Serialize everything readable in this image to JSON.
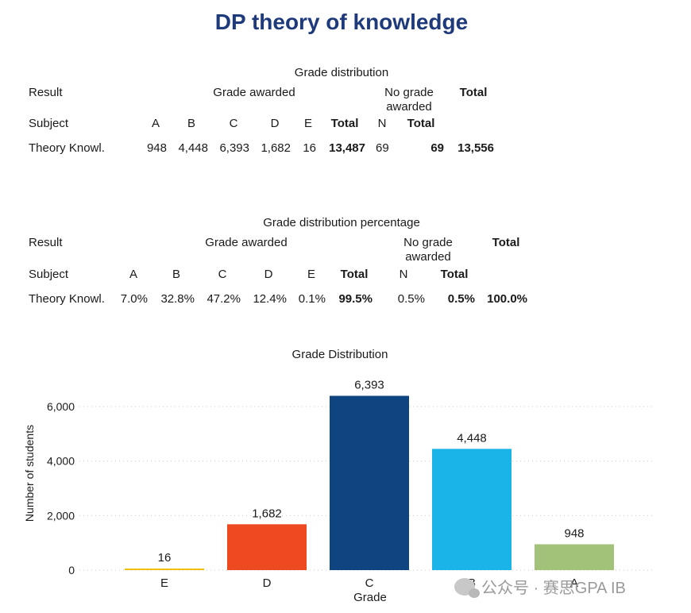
{
  "title": "DP theory of knowledge",
  "table1": {
    "caption": "Grade distribution",
    "result_label": "Result",
    "grade_awarded_label": "Grade awarded",
    "no_grade_label_1": "No grade",
    "no_grade_label_2": "awarded",
    "total_label": "Total",
    "subject_label": "Subject",
    "col_a": "A",
    "col_b": "B",
    "col_c": "C",
    "col_d": "D",
    "col_e": "E",
    "col_total": "Total",
    "col_n": "N",
    "col_total2": "Total",
    "row": {
      "subject": "Theory Knowl.",
      "a": "948",
      "b": "4,448",
      "c": "6,393",
      "d": "1,682",
      "e": "16",
      "total": "13,487",
      "n": "69",
      "total2": "69",
      "grand_total": "13,556"
    }
  },
  "table2": {
    "caption": "Grade distribution percentage",
    "result_label": "Result",
    "grade_awarded_label": "Grade awarded",
    "no_grade_label_1": "No grade",
    "no_grade_label_2": "awarded",
    "total_label": "Total",
    "subject_label": "Subject",
    "col_a": "A",
    "col_b": "B",
    "col_c": "C",
    "col_d": "D",
    "col_e": "E",
    "col_total": "Total",
    "col_n": "N",
    "col_total2": "Total",
    "row": {
      "subject": "Theory Knowl.",
      "a": "7.0%",
      "b": "32.8%",
      "c": "47.2%",
      "d": "12.4%",
      "e": "0.1%",
      "total": "99.5%",
      "n": "0.5%",
      "total2": "0.5%",
      "grand_total": "100.0%"
    }
  },
  "chart_data": {
    "type": "bar",
    "title": "Grade Distribution",
    "xlabel": "Grade",
    "ylabel": "Number of students",
    "categories": [
      "E",
      "D",
      "C",
      "B",
      "A"
    ],
    "values": [
      16,
      1682,
      6393,
      4448,
      948
    ],
    "value_labels": [
      "16",
      "1,682",
      "6,393",
      "4,448",
      "948"
    ],
    "colors": [
      "#f2c000",
      "#ee4a22",
      "#0e4580",
      "#1ab4e8",
      "#a3c279"
    ],
    "ylim": [
      0,
      6500
    ],
    "yticks": [
      0,
      2000,
      4000,
      6000
    ],
    "ytick_labels": [
      "0",
      "2,000",
      "4,000",
      "6,000"
    ],
    "grid": true
  },
  "watermark": "公众号 · 赛思GPA IB"
}
